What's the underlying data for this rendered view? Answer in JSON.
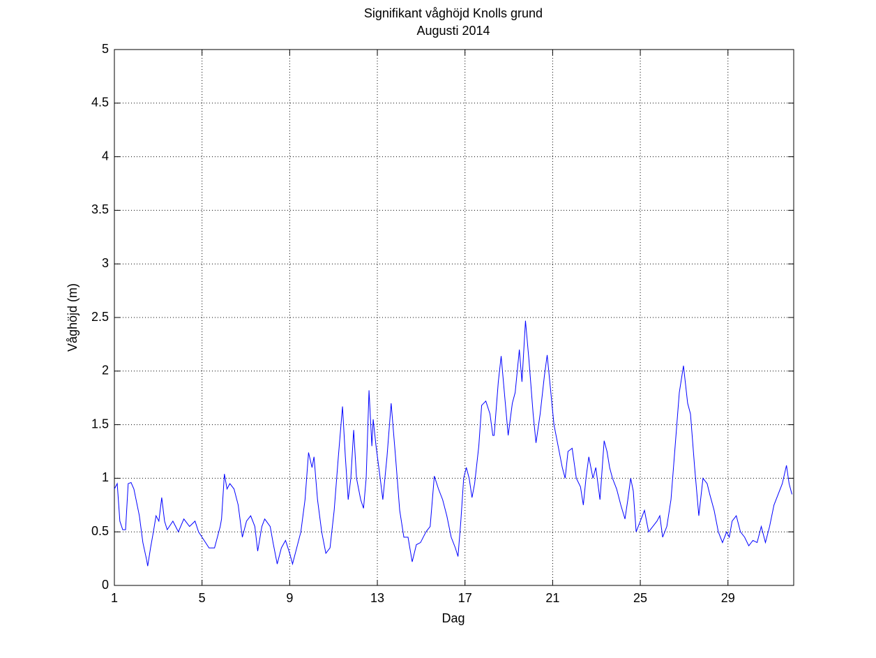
{
  "chart_data": {
    "type": "line",
    "title": "Signifikant våghöjd Knolls grund",
    "subtitle": "Augusti 2014",
    "x_label": "Dag",
    "y_label": "Våghöjd (m)",
    "color": "#0000ff",
    "grid": true,
    "xlim": [
      1,
      32
    ],
    "ylim": [
      0,
      5
    ],
    "xticks": [
      1,
      5,
      9,
      13,
      17,
      21,
      25,
      29
    ],
    "yticks": [
      0,
      0.5,
      1,
      1.5,
      2,
      2.5,
      3,
      3.5,
      4,
      4.5,
      5
    ],
    "x": [
      1.0,
      1.13,
      1.25,
      1.38,
      1.51,
      1.63,
      1.76,
      1.89,
      2.14,
      2.3,
      2.46,
      2.52,
      2.65,
      2.78,
      2.9,
      3.03,
      3.16,
      3.29,
      3.41,
      3.67,
      3.92,
      4.17,
      4.43,
      4.68,
      4.84,
      5.0,
      5.32,
      5.57,
      5.7,
      5.83,
      5.89,
      6.02,
      6.14,
      6.27,
      6.46,
      6.65,
      6.84,
      7.03,
      7.22,
      7.41,
      7.54,
      7.73,
      7.86,
      8.11,
      8.24,
      8.43,
      8.62,
      8.81,
      9.0,
      9.13,
      9.32,
      9.51,
      9.7,
      9.86,
      10.02,
      10.11,
      10.27,
      10.46,
      10.65,
      10.84,
      11.03,
      11.22,
      11.41,
      11.54,
      11.67,
      11.79,
      11.92,
      12.05,
      12.24,
      12.37,
      12.49,
      12.62,
      12.75,
      12.81,
      12.94,
      13.13,
      13.25,
      13.44,
      13.63,
      13.83,
      14.02,
      14.21,
      14.4,
      14.59,
      14.78,
      14.97,
      15.22,
      15.41,
      15.6,
      15.79,
      15.98,
      16.17,
      16.37,
      16.56,
      16.68,
      16.81,
      16.94,
      17.06,
      17.19,
      17.32,
      17.44,
      17.63,
      17.76,
      17.95,
      18.14,
      18.27,
      18.33,
      18.52,
      18.65,
      18.84,
      18.97,
      19.16,
      19.29,
      19.48,
      19.6,
      19.76,
      19.92,
      20.11,
      20.24,
      20.43,
      20.62,
      20.75,
      20.87,
      21.06,
      21.25,
      21.44,
      21.57,
      21.7,
      21.89,
      22.08,
      22.27,
      22.4,
      22.52,
      22.65,
      22.84,
      22.97,
      23.16,
      23.35,
      23.48,
      23.6,
      23.73,
      23.92,
      24.11,
      24.3,
      24.43,
      24.56,
      24.68,
      24.81,
      25.0,
      25.19,
      25.38,
      25.57,
      25.76,
      25.89,
      26.02,
      26.21,
      26.4,
      26.59,
      26.78,
      26.97,
      27.16,
      27.29,
      27.48,
      27.67,
      27.86,
      28.05,
      28.17,
      28.37,
      28.56,
      28.75,
      28.94,
      29.06,
      29.19,
      29.38,
      29.57,
      29.76,
      29.95,
      30.14,
      30.33,
      30.52,
      30.71,
      30.9,
      31.1,
      31.29,
      31.48,
      31.67,
      31.79,
      31.92
    ],
    "values": [
      0.9,
      0.95,
      0.6,
      0.52,
      0.52,
      0.95,
      0.96,
      0.9,
      0.65,
      0.4,
      0.25,
      0.18,
      0.35,
      0.5,
      0.65,
      0.6,
      0.82,
      0.6,
      0.52,
      0.6,
      0.5,
      0.62,
      0.55,
      0.6,
      0.5,
      0.45,
      0.35,
      0.35,
      0.45,
      0.55,
      0.62,
      1.04,
      0.9,
      0.95,
      0.9,
      0.75,
      0.45,
      0.6,
      0.65,
      0.55,
      0.32,
      0.55,
      0.62,
      0.55,
      0.4,
      0.2,
      0.35,
      0.42,
      0.3,
      0.2,
      0.35,
      0.5,
      0.8,
      1.24,
      1.1,
      1.2,
      0.8,
      0.5,
      0.3,
      0.35,
      0.7,
      1.2,
      1.67,
      1.2,
      0.8,
      1.0,
      1.45,
      1.0,
      0.8,
      0.72,
      1.0,
      1.82,
      1.3,
      1.55,
      1.3,
      1.0,
      0.8,
      1.2,
      1.7,
      1.2,
      0.7,
      0.45,
      0.45,
      0.22,
      0.38,
      0.4,
      0.5,
      0.55,
      1.02,
      0.9,
      0.8,
      0.65,
      0.45,
      0.35,
      0.27,
      0.6,
      1.0,
      1.1,
      1.0,
      0.82,
      0.95,
      1.3,
      1.68,
      1.72,
      1.6,
      1.4,
      1.4,
      1.9,
      2.14,
      1.7,
      1.4,
      1.7,
      1.8,
      2.2,
      1.9,
      2.47,
      2.1,
      1.6,
      1.33,
      1.6,
      1.95,
      2.15,
      1.9,
      1.5,
      1.3,
      1.1,
      1.0,
      1.25,
      1.28,
      1.0,
      0.92,
      0.75,
      1.0,
      1.2,
      1.0,
      1.1,
      0.8,
      1.35,
      1.25,
      1.1,
      1.0,
      0.9,
      0.75,
      0.62,
      0.8,
      1.0,
      0.88,
      0.5,
      0.6,
      0.7,
      0.5,
      0.55,
      0.6,
      0.65,
      0.45,
      0.55,
      0.8,
      1.3,
      1.8,
      2.05,
      1.7,
      1.6,
      1.1,
      0.65,
      1.0,
      0.95,
      0.85,
      0.7,
      0.5,
      0.4,
      0.5,
      0.45,
      0.6,
      0.65,
      0.5,
      0.45,
      0.37,
      0.42,
      0.4,
      0.55,
      0.4,
      0.55,
      0.75,
      0.85,
      0.95,
      1.12,
      0.95,
      0.85
    ]
  }
}
